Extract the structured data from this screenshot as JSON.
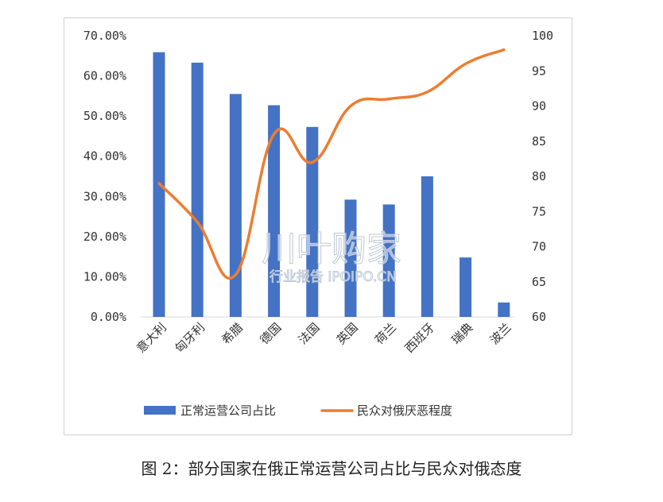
{
  "chart_data": {
    "type": "bar+line",
    "categories": [
      "意大利",
      "匈牙利",
      "希腊",
      "德国",
      "法国",
      "英国",
      "荷兰",
      "西班牙",
      "瑞典",
      "波兰"
    ],
    "series": [
      {
        "name": "正常运营公司占比",
        "type": "bar",
        "axis": "left",
        "values": [
          65.9,
          63.3,
          55.5,
          52.7,
          47.3,
          29.2,
          28.0,
          35.0,
          14.8,
          3.6
        ]
      },
      {
        "name": "民众对俄厌恶程度",
        "type": "line",
        "axis": "right",
        "values": [
          79,
          73.5,
          66,
          86,
          82,
          90,
          91,
          92,
          96,
          98
        ]
      }
    ],
    "y_left": {
      "min": 0,
      "max": 70,
      "step": 10,
      "tick_format": "percent2"
    },
    "y_right": {
      "min": 60,
      "max": 100,
      "step": 5
    },
    "grid": false,
    "legend_position": "bottom",
    "colors": {
      "bar": "#4472C4",
      "line": "#ED7D31"
    }
  },
  "watermark": {
    "main": "川叶购家",
    "sub": "行业报告 IPOIPO.CN"
  },
  "caption": "图 2：部分国家在俄正常运营公司占比与民众对俄态度"
}
